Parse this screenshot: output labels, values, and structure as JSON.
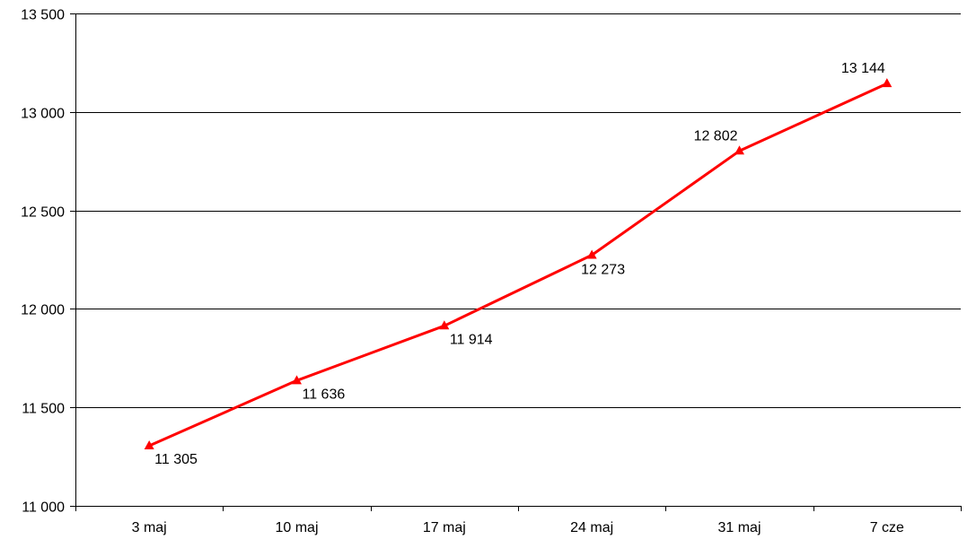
{
  "chart_data": {
    "type": "line",
    "title": "",
    "xlabel": "",
    "ylabel": "",
    "categories": [
      "3 maj",
      "10 maj",
      "17 maj",
      "24 maj",
      "31 maj",
      "7 cze"
    ],
    "series": [
      {
        "values": [
          11305,
          11636,
          11914,
          12273,
          12802,
          13144
        ],
        "data_labels": [
          "11 305",
          "11 636",
          "11 914",
          "12 273",
          "12 802",
          "13 144"
        ],
        "color": "#FF0000",
        "marker": "triangle"
      }
    ],
    "ylim": [
      11000,
      13500
    ],
    "yticks": [
      11000,
      11500,
      12000,
      12500,
      13000,
      13500
    ],
    "ytick_labels": [
      "11 000",
      "11 500",
      "12 000",
      "12 500",
      "13 000",
      "13 500"
    ],
    "grid": "horizontal",
    "legend": "none"
  }
}
